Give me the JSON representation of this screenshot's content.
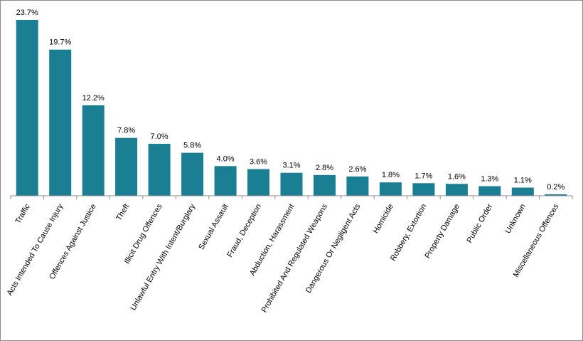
{
  "chart_data": {
    "type": "bar",
    "title": "",
    "xlabel": "",
    "ylabel": "",
    "ylim": [
      0,
      23.7
    ],
    "grid": false,
    "legend": "none",
    "bar_color": "#1a7f93",
    "categories": [
      "Traffic",
      "Acts Intended To Cause Injury",
      "Offences Against Justice",
      "Theft",
      "Illicit Drug Offences",
      "Unlawful Entry With Intent/Burglary",
      "Sexual Assault",
      "Fraud, Deception",
      "Abduction, Harassment",
      "Prohibited And Regulated Weapons",
      "Dangerous Or Negligent Acts",
      "Homicide",
      "Robbery, Extortion",
      "Property Damage",
      "Public Order",
      "Unknown",
      "Miscellaneous Offences"
    ],
    "values": [
      23.7,
      19.7,
      12.2,
      7.8,
      7.0,
      5.8,
      4.0,
      3.6,
      3.1,
      2.8,
      2.6,
      1.8,
      1.7,
      1.6,
      1.3,
      1.1,
      0.2
    ],
    "value_labels": [
      "23.7%",
      "19.7%",
      "12.2%",
      "7.8%",
      "7.0%",
      "5.8%",
      "4.0%",
      "3.6%",
      "3.1%",
      "2.8%",
      "2.6%",
      "1.8%",
      "1.7%",
      "1.6%",
      "1.3%",
      "1.1%",
      "0.2%"
    ]
  }
}
